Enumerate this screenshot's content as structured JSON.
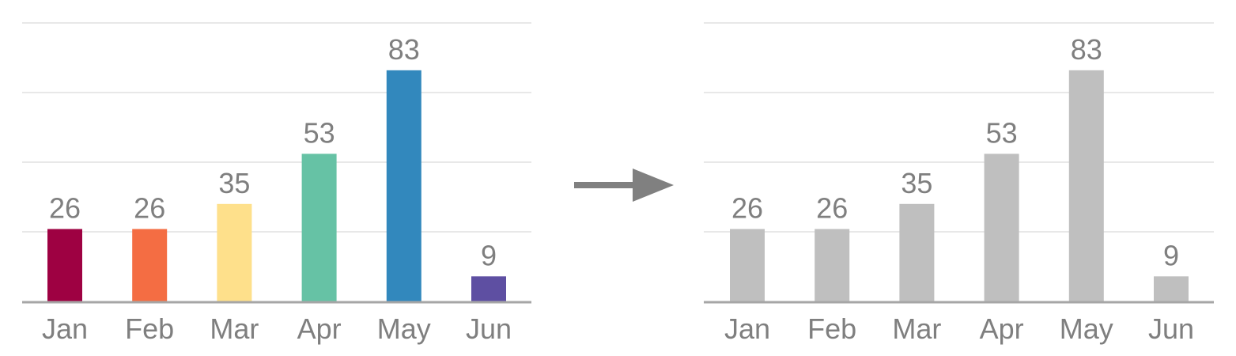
{
  "chart_data": [
    {
      "type": "bar",
      "categories": [
        "Jan",
        "Feb",
        "Mar",
        "Apr",
        "May",
        "Jun"
      ],
      "values": [
        26,
        26,
        35,
        53,
        83,
        9
      ],
      "colors": [
        "#9e0142",
        "#f46d43",
        "#fee08b",
        "#66c2a5",
        "#3288bd",
        "#5e4fa2"
      ],
      "ylim": [
        0,
        100
      ],
      "grid": true,
      "data_labels": true
    },
    {
      "type": "bar",
      "categories": [
        "Jan",
        "Feb",
        "Mar",
        "Apr",
        "May",
        "Jun"
      ],
      "values": [
        26,
        26,
        35,
        53,
        83,
        9
      ],
      "colors": [
        "#bfbfbf",
        "#bfbfbf",
        "#bfbfbf",
        "#bfbfbf",
        "#bfbfbf",
        "#bfbfbf"
      ],
      "ylim": [
        0,
        100
      ],
      "grid": true,
      "data_labels": true
    }
  ],
  "arrow": {
    "icon": "arrow-right-icon",
    "color": "#808080"
  },
  "style": {
    "grid_color": "#d9d9d9",
    "axis_color": "#a6a6a6",
    "label_color": "#7f7f7f"
  }
}
